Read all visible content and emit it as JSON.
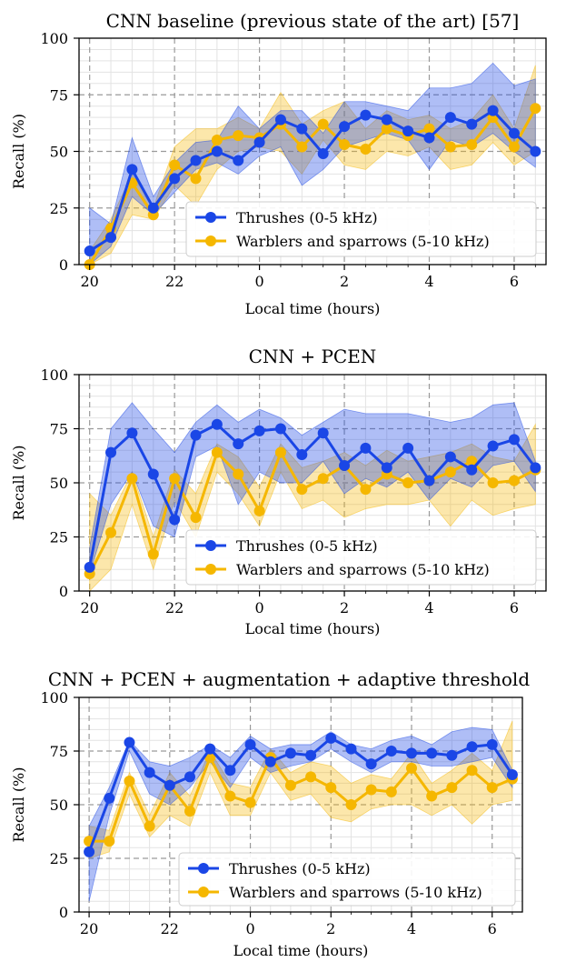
{
  "chart_data": [
    {
      "type": "line",
      "title": "CNN baseline (previous state of the art) [57]",
      "xlabel": "Local time (hours)",
      "ylabel": "Recall (%)",
      "xlim": [
        19.75,
        30.75
      ],
      "ylim": [
        0,
        100
      ],
      "x_ticks": [
        {
          "v": 20,
          "label": "20"
        },
        {
          "v": 22,
          "label": "22"
        },
        {
          "v": 24,
          "label": "0"
        },
        {
          "v": 26,
          "label": "2"
        },
        {
          "v": 28,
          "label": "4"
        },
        {
          "v": 30,
          "label": "6"
        }
      ],
      "y_ticks": [
        {
          "v": 0,
          "label": "0"
        },
        {
          "v": 25,
          "label": "25"
        },
        {
          "v": 50,
          "label": "50"
        },
        {
          "v": 75,
          "label": "75"
        },
        {
          "v": 100,
          "label": "100"
        }
      ],
      "legend_position": "lower-right",
      "x": [
        20,
        20.5,
        21,
        21.5,
        22,
        22.5,
        23,
        23.5,
        24,
        24.5,
        25,
        25.5,
        26,
        26.5,
        27,
        27.5,
        28,
        28.5,
        29,
        29.5,
        30,
        30.5
      ],
      "series": [
        {
          "name": "Thrushes (0-5 kHz)",
          "color": "#1a46e6",
          "values": [
            6,
            12,
            42,
            25,
            38,
            46,
            50,
            46,
            54,
            64,
            60,
            49,
            61,
            66,
            64,
            59,
            56,
            65,
            62,
            68,
            58,
            50
          ],
          "lower": [
            0,
            8,
            30,
            22,
            32,
            42,
            45,
            40,
            48,
            52,
            35,
            42,
            52,
            55,
            58,
            55,
            42,
            55,
            52,
            58,
            50,
            43
          ],
          "upper": [
            25,
            18,
            56,
            30,
            45,
            54,
            55,
            70,
            60,
            68,
            68,
            58,
            72,
            72,
            70,
            68,
            78,
            78,
            80,
            89,
            79,
            82
          ]
        },
        {
          "name": "Warblers and sparrows (5-10 kHz)",
          "color": "#f5b700",
          "values": [
            0,
            16,
            36,
            22,
            44,
            38,
            55,
            57,
            56,
            62,
            52,
            62,
            53,
            51,
            60,
            57,
            60,
            52,
            53,
            65,
            52,
            69
          ],
          "lower": [
            0,
            5,
            22,
            20,
            35,
            26,
            42,
            50,
            52,
            50,
            40,
            55,
            44,
            42,
            50,
            48,
            52,
            42,
            44,
            54,
            44,
            50
          ],
          "upper": [
            6,
            20,
            40,
            25,
            52,
            60,
            60,
            65,
            60,
            76,
            62,
            68,
            72,
            60,
            68,
            64,
            66,
            60,
            64,
            75,
            60,
            88
          ]
        }
      ]
    },
    {
      "type": "line",
      "title": "CNN + PCEN",
      "xlabel": "Local time (hours)",
      "ylabel": "Recall (%)",
      "xlim": [
        19.75,
        30.75
      ],
      "ylim": [
        0,
        100
      ],
      "x_ticks": [
        {
          "v": 20,
          "label": "20"
        },
        {
          "v": 22,
          "label": "22"
        },
        {
          "v": 24,
          "label": "0"
        },
        {
          "v": 26,
          "label": "2"
        },
        {
          "v": 28,
          "label": "4"
        },
        {
          "v": 30,
          "label": "6"
        }
      ],
      "y_ticks": [
        {
          "v": 0,
          "label": "0"
        },
        {
          "v": 25,
          "label": "25"
        },
        {
          "v": 50,
          "label": "50"
        },
        {
          "v": 75,
          "label": "75"
        },
        {
          "v": 100,
          "label": "100"
        }
      ],
      "legend_position": "lower-right",
      "x": [
        20,
        20.5,
        21,
        21.5,
        22,
        22.5,
        23,
        23.5,
        24,
        24.5,
        25,
        25.5,
        26,
        26.5,
        27,
        27.5,
        28,
        28.5,
        29,
        29.5,
        30,
        30.5
      ],
      "series": [
        {
          "name": "Thrushes (0-5 kHz)",
          "color": "#1a46e6",
          "values": [
            11,
            64,
            73,
            54,
            33,
            72,
            77,
            68,
            74,
            75,
            63,
            73,
            58,
            66,
            57,
            66,
            51,
            62,
            56,
            67,
            70,
            57
          ],
          "lower": [
            8,
            40,
            55,
            30,
            25,
            62,
            67,
            40,
            55,
            50,
            50,
            60,
            45,
            52,
            48,
            55,
            42,
            52,
            48,
            58,
            60,
            46
          ],
          "upper": [
            20,
            75,
            87,
            75,
            64,
            78,
            86,
            78,
            84,
            80,
            72,
            78,
            84,
            82,
            82,
            82,
            80,
            78,
            80,
            86,
            87,
            60
          ]
        },
        {
          "name": "Warblers and sparrows (5-10 kHz)",
          "color": "#f5b700",
          "values": [
            8,
            27,
            52,
            17,
            52,
            34,
            64,
            54,
            37,
            64,
            47,
            52,
            58,
            47,
            54,
            50,
            51,
            55,
            60,
            50,
            51,
            56
          ],
          "lower": [
            0,
            10,
            40,
            10,
            42,
            25,
            55,
            45,
            30,
            55,
            38,
            42,
            34,
            38,
            40,
            40,
            42,
            30,
            42,
            35,
            38,
            40
          ],
          "upper": [
            45,
            35,
            55,
            25,
            56,
            45,
            68,
            62,
            48,
            68,
            57,
            60,
            64,
            58,
            65,
            60,
            62,
            64,
            68,
            62,
            60,
            77
          ]
        }
      ]
    },
    {
      "type": "line",
      "title": "CNN + PCEN + augmentation + adaptive threshold",
      "xlabel": "Local time (hours)",
      "ylabel": "Recall (%)",
      "xlim": [
        19.75,
        30.75
      ],
      "ylim": [
        0,
        100
      ],
      "x_ticks": [
        {
          "v": 20,
          "label": "20"
        },
        {
          "v": 22,
          "label": "22"
        },
        {
          "v": 24,
          "label": "0"
        },
        {
          "v": 26,
          "label": "2"
        },
        {
          "v": 28,
          "label": "4"
        },
        {
          "v": 30,
          "label": "6"
        }
      ],
      "y_ticks": [
        {
          "v": 0,
          "label": "0"
        },
        {
          "v": 25,
          "label": "25"
        },
        {
          "v": 50,
          "label": "50"
        },
        {
          "v": 75,
          "label": "75"
        },
        {
          "v": 100,
          "label": "100"
        }
      ],
      "legend_position": "lower-right",
      "x": [
        20,
        20.5,
        21,
        21.5,
        22,
        22.5,
        23,
        23.5,
        24,
        24.5,
        25,
        25.5,
        26,
        26.5,
        27,
        27.5,
        28,
        28.5,
        29,
        29.5,
        30,
        30.5
      ],
      "series": [
        {
          "name": "Thrushes (0-5 kHz)",
          "color": "#1a46e6",
          "values": [
            28,
            53,
            79,
            65,
            59,
            63,
            76,
            66,
            78,
            70,
            74,
            73,
            81,
            76,
            69,
            75,
            74,
            74,
            73,
            77,
            78,
            64
          ],
          "lower": [
            5,
            45,
            75,
            55,
            50,
            58,
            70,
            58,
            72,
            65,
            68,
            70,
            76,
            70,
            65,
            70,
            70,
            68,
            68,
            70,
            72,
            58
          ],
          "upper": [
            40,
            58,
            80,
            70,
            68,
            72,
            78,
            72,
            82,
            76,
            78,
            78,
            84,
            78,
            76,
            80,
            82,
            78,
            84,
            86,
            85,
            66
          ]
        },
        {
          "name": "Warblers and sparrows (5-10 kHz)",
          "color": "#f5b700",
          "values": [
            33,
            33,
            61,
            40,
            59,
            47,
            72,
            54,
            51,
            72,
            59,
            63,
            58,
            50,
            57,
            56,
            67,
            54,
            58,
            66,
            58,
            62
          ],
          "lower": [
            25,
            28,
            55,
            35,
            45,
            40,
            65,
            45,
            45,
            65,
            52,
            55,
            44,
            42,
            48,
            50,
            50,
            45,
            50,
            41,
            50,
            52
          ],
          "upper": [
            40,
            38,
            65,
            45,
            65,
            54,
            75,
            60,
            58,
            76,
            65,
            70,
            68,
            60,
            64,
            62,
            74,
            60,
            66,
            74,
            66,
            89
          ]
        }
      ]
    }
  ]
}
